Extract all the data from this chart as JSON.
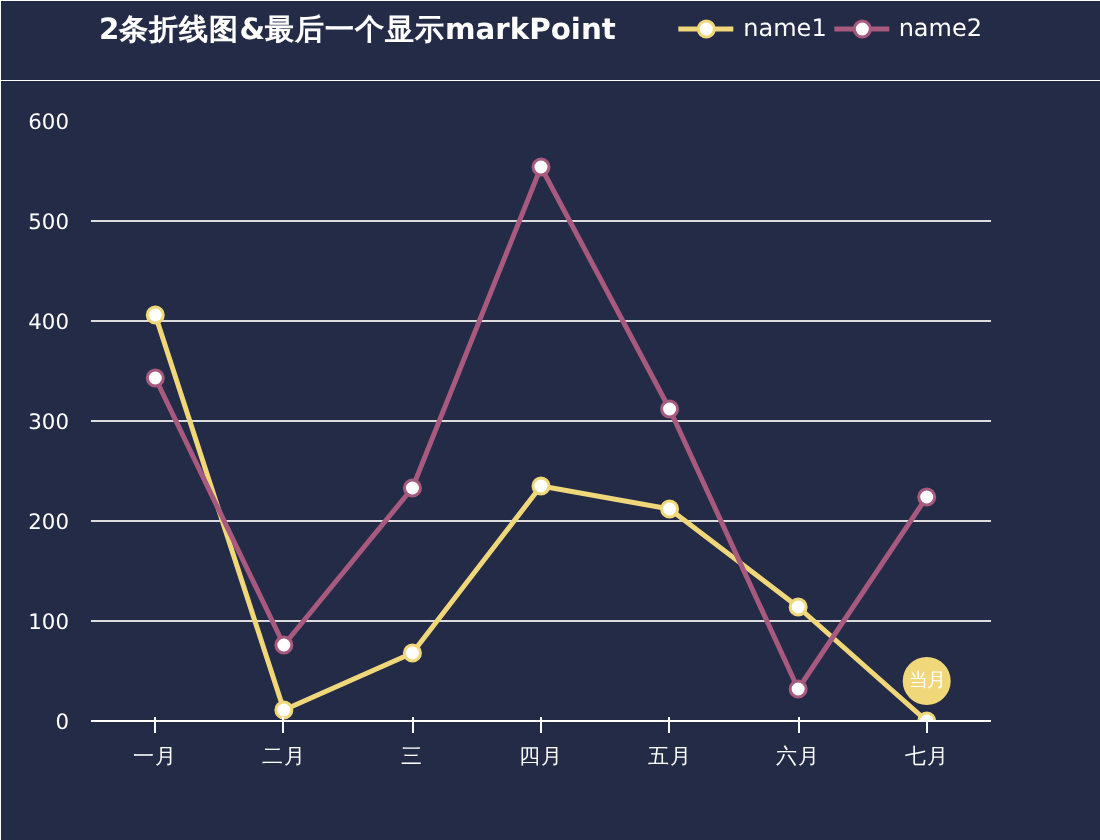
{
  "chart_data": {
    "type": "line",
    "title": "2条折线图&最后一个显示markPoint",
    "categories": [
      "一月",
      "二月",
      "三",
      "四月",
      "五月",
      "六月",
      "七月"
    ],
    "series": [
      {
        "name": "name1",
        "color": "#f0d87a",
        "values": [
          406,
          11,
          68,
          235,
          212,
          114,
          0
        ]
      },
      {
        "name": "name2",
        "color": "#a75a7d",
        "values": [
          343,
          76,
          233,
          554,
          312,
          32,
          224
        ]
      }
    ],
    "ylim": [
      0,
      600
    ],
    "yticks": [
      0,
      100,
      200,
      300,
      400,
      500,
      600
    ],
    "grid": "y",
    "legend": "top right",
    "marker": "circle",
    "annotations": [
      {
        "text": "当月",
        "x": "七月",
        "y": 0
      }
    ]
  }
}
